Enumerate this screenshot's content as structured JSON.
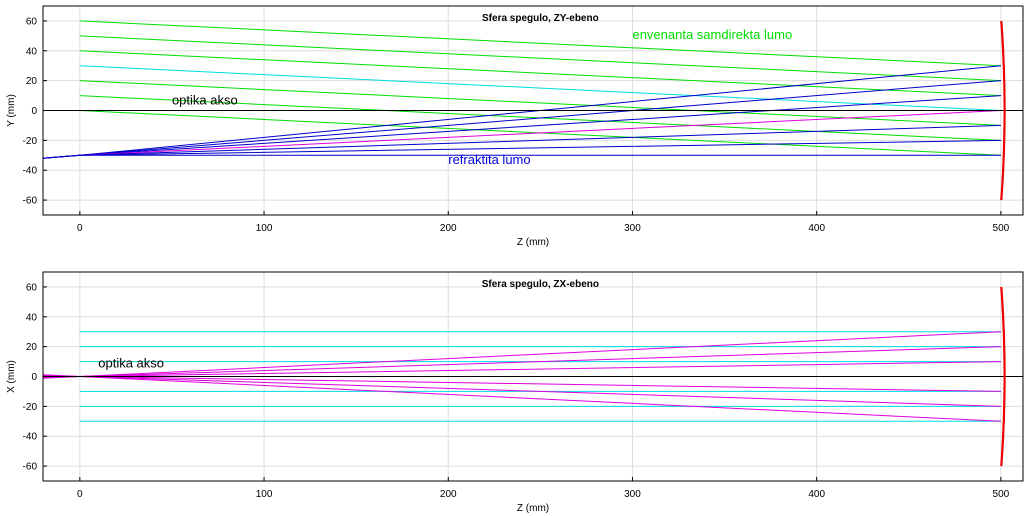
{
  "chart_data": [
    {
      "type": "line",
      "title": "Sfera spegulo, ZY-ebeno",
      "xlabel": "Z (mm)",
      "ylabel": "Y (mm)",
      "xlim": [
        -20,
        512
      ],
      "ylim": [
        -70,
        70
      ],
      "xticks": [
        0,
        100,
        200,
        300,
        400,
        500
      ],
      "yticks": [
        -60,
        -40,
        -20,
        0,
        20,
        40,
        60
      ],
      "grid": true,
      "colors": {
        "incident": "#00dd00",
        "incident_marginal": "#00dddd",
        "reflected": "#0000cc",
        "reflected_marginal": "#dd00dd",
        "axis": "#000000",
        "mirror": "#ee0000"
      },
      "annotations": [
        {
          "text": "envenanta samdirekta lumo",
          "x": 300,
          "y": 48,
          "color": "#00dd00"
        },
        {
          "text": "optika akso",
          "x": 50,
          "y": 4,
          "color": "#000000"
        },
        {
          "text": "refraktita lumo",
          "x": 200,
          "y": -36,
          "color": "#0000dd"
        }
      ],
      "optical_axis": {
        "x": [
          -20,
          512
        ],
        "y": [
          0,
          0
        ]
      },
      "mirror": {
        "z_vertex": 500,
        "radius": 1000,
        "y_range": [
          -60,
          60
        ]
      },
      "series": [
        {
          "kind": "incident",
          "x": [
            0,
            500
          ],
          "y": [
            60,
            30
          ]
        },
        {
          "kind": "incident",
          "x": [
            0,
            500
          ],
          "y": [
            50,
            20
          ]
        },
        {
          "kind": "incident",
          "x": [
            0,
            500
          ],
          "y": [
            40,
            10
          ]
        },
        {
          "kind": "incident_marginal",
          "x": [
            0,
            500
          ],
          "y": [
            30,
            0
          ]
        },
        {
          "kind": "incident",
          "x": [
            0,
            500
          ],
          "y": [
            20,
            -10
          ]
        },
        {
          "kind": "incident",
          "x": [
            0,
            500
          ],
          "y": [
            10,
            -20
          ]
        },
        {
          "kind": "incident",
          "x": [
            0,
            500
          ],
          "y": [
            0,
            -30
          ]
        },
        {
          "kind": "reflected",
          "x": [
            500,
            0,
            -20
          ],
          "y": [
            30,
            -30,
            -32
          ]
        },
        {
          "kind": "reflected",
          "x": [
            500,
            0,
            -20
          ],
          "y": [
            20,
            -30,
            -32
          ]
        },
        {
          "kind": "reflected",
          "x": [
            500,
            0,
            -20
          ],
          "y": [
            10,
            -30,
            -32
          ]
        },
        {
          "kind": "reflected_marginal",
          "x": [
            500,
            0,
            -20
          ],
          "y": [
            0,
            -30,
            -32
          ]
        },
        {
          "kind": "reflected",
          "x": [
            500,
            0,
            -20
          ],
          "y": [
            -10,
            -30,
            -32
          ]
        },
        {
          "kind": "reflected",
          "x": [
            500,
            0,
            -20
          ],
          "y": [
            -20,
            -30,
            -32
          ]
        },
        {
          "kind": "reflected",
          "x": [
            500,
            0,
            -20
          ],
          "y": [
            -30,
            -30,
            -32
          ]
        }
      ]
    },
    {
      "type": "line",
      "title": "Sfera spegulo, ZX-ebeno",
      "xlabel": "Z (mm)",
      "ylabel": "X (mm)",
      "xlim": [
        -20,
        512
      ],
      "ylim": [
        -70,
        70
      ],
      "xticks": [
        0,
        100,
        200,
        300,
        400,
        500
      ],
      "yticks": [
        -60,
        -40,
        -20,
        0,
        20,
        40,
        60
      ],
      "grid": true,
      "colors": {
        "incident": "#00dddd",
        "reflected": "#dd00dd",
        "axis": "#000000",
        "mirror": "#ee0000"
      },
      "annotations": [
        {
          "text": "optika akso",
          "x": 10,
          "y": 6,
          "color": "#000000"
        }
      ],
      "optical_axis": {
        "x": [
          -20,
          512
        ],
        "y": [
          0,
          0
        ]
      },
      "mirror": {
        "z_vertex": 500,
        "radius": 1000,
        "y_range": [
          -60,
          60
        ]
      },
      "series": [
        {
          "kind": "incident",
          "x": [
            0,
            500
          ],
          "y": [
            30,
            30
          ]
        },
        {
          "kind": "incident",
          "x": [
            0,
            500
          ],
          "y": [
            20,
            20
          ]
        },
        {
          "kind": "incident",
          "x": [
            0,
            500
          ],
          "y": [
            10,
            10
          ]
        },
        {
          "kind": "incident",
          "x": [
            0,
            500
          ],
          "y": [
            -10,
            -10
          ]
        },
        {
          "kind": "incident",
          "x": [
            0,
            500
          ],
          "y": [
            -20,
            -20
          ]
        },
        {
          "kind": "incident",
          "x": [
            0,
            500
          ],
          "y": [
            -30,
            -30
          ]
        },
        {
          "kind": "reflected",
          "x": [
            500,
            0,
            -20
          ],
          "y": [
            30,
            0,
            -1.2
          ]
        },
        {
          "kind": "reflected",
          "x": [
            500,
            0,
            -20
          ],
          "y": [
            20,
            0,
            -0.8
          ]
        },
        {
          "kind": "reflected",
          "x": [
            500,
            0,
            -20
          ],
          "y": [
            10,
            0,
            -0.4
          ]
        },
        {
          "kind": "reflected",
          "x": [
            500,
            0,
            -20
          ],
          "y": [
            -10,
            0,
            0.4
          ]
        },
        {
          "kind": "reflected",
          "x": [
            500,
            0,
            -20
          ],
          "y": [
            -20,
            0,
            0.8
          ]
        },
        {
          "kind": "reflected",
          "x": [
            500,
            0,
            -20
          ],
          "y": [
            -30,
            0,
            1.2
          ]
        }
      ]
    }
  ]
}
